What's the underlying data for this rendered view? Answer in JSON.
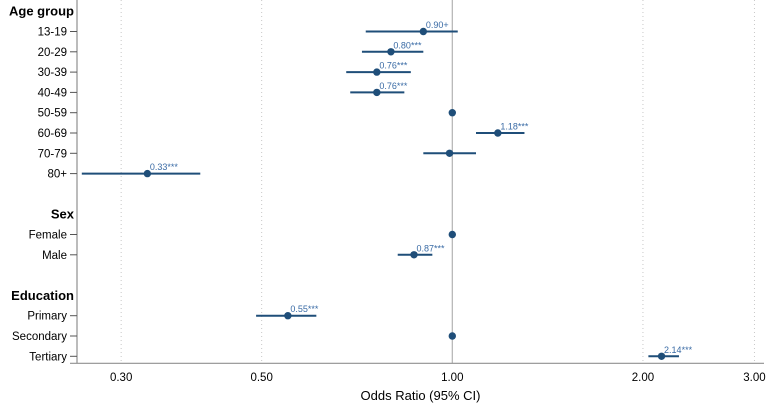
{
  "chart_data": {
    "type": "scatter",
    "variant": "forest-plot",
    "xlabel": "Odds Ratio (95% CI)",
    "x_scale": "log",
    "x_range": [
      0.26,
      3.2
    ],
    "grid": "vertical-dotted-at-ticks",
    "reference_line": 1.0,
    "x_ticks": [
      {
        "value": 0.3,
        "label": "0.30"
      },
      {
        "value": 0.5,
        "label": "0.50"
      },
      {
        "value": 1.0,
        "label": "1.00"
      },
      {
        "value": 2.0,
        "label": "2.00"
      },
      {
        "value": 3.0,
        "label": "3.00"
      }
    ],
    "groups": [
      {
        "header": "Age group",
        "items": [
          {
            "label": "13-19",
            "or": 0.9,
            "ci": [
              0.73,
              1.02
            ],
            "annotation": "0.90+"
          },
          {
            "label": "20-29",
            "or": 0.8,
            "ci": [
              0.72,
              0.9
            ],
            "annotation": "0.80***"
          },
          {
            "label": "30-39",
            "or": 0.76,
            "ci": [
              0.68,
              0.86
            ],
            "annotation": "0.76***"
          },
          {
            "label": "40-49",
            "or": 0.76,
            "ci": [
              0.69,
              0.84
            ],
            "annotation": "0.76***"
          },
          {
            "label": "50-59",
            "or": 1.0,
            "reference": true
          },
          {
            "label": "60-69",
            "or": 1.18,
            "ci": [
              1.09,
              1.3
            ],
            "annotation": "1.18***"
          },
          {
            "label": "70-79",
            "or": 0.99,
            "ci": [
              0.9,
              1.09
            ]
          },
          {
            "label": "80+",
            "or": 0.33,
            "ci": [
              0.26,
              0.4
            ],
            "annotation": "0.33***"
          }
        ]
      },
      {
        "header": "Sex",
        "items": [
          {
            "label": "Female",
            "or": 1.0,
            "reference": true
          },
          {
            "label": "Male",
            "or": 0.87,
            "ci": [
              0.82,
              0.93
            ],
            "annotation": "0.87***"
          }
        ]
      },
      {
        "header": "Education",
        "items": [
          {
            "label": "Primary",
            "or": 0.55,
            "ci": [
              0.49,
              0.61
            ],
            "annotation": "0.55***"
          },
          {
            "label": "Secondary",
            "or": 1.0,
            "reference": true
          },
          {
            "label": "Tertiary",
            "or": 2.14,
            "ci": [
              2.04,
              2.28
            ],
            "annotation": "2.14***"
          }
        ]
      }
    ],
    "colors": {
      "estimate": "#1f4e79",
      "annotation": "#3a6ba5",
      "axis": "#909090",
      "y_tick": "#555555",
      "gridline": "#c8c8c8",
      "reference_line": "#b3b3b3",
      "text": "#000000"
    }
  }
}
